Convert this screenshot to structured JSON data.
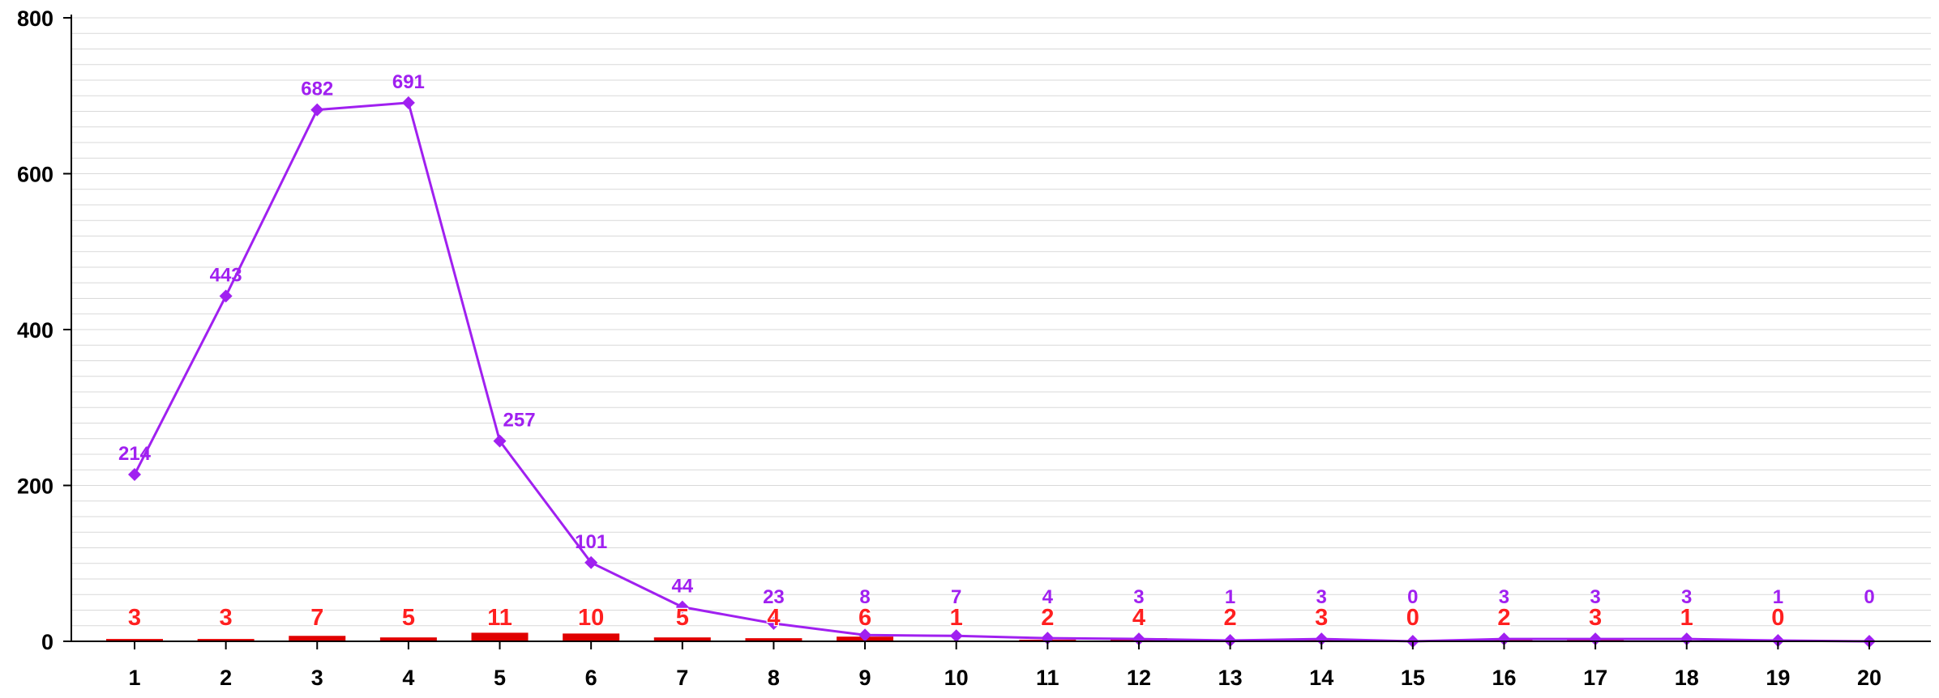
{
  "chart_data": {
    "type": "bar",
    "categories": [
      "1",
      "2",
      "3",
      "4",
      "5",
      "6",
      "7",
      "8",
      "9",
      "10",
      "11",
      "12",
      "13",
      "14",
      "15",
      "16",
      "17",
      "18",
      "19",
      "20"
    ],
    "series": [
      {
        "type": "bar",
        "values": [
          3,
          3,
          7,
          5,
          11,
          10,
          5,
          4,
          6,
          1,
          2,
          4,
          2,
          3,
          0,
          2,
          3,
          1,
          0,
          null
        ]
      },
      {
        "type": "line",
        "values": [
          214,
          443,
          682,
          691,
          257,
          101,
          44,
          23,
          8,
          7,
          4,
          3,
          1,
          3,
          0,
          3,
          3,
          3,
          1,
          0
        ]
      }
    ],
    "ylim": [
      0,
      800
    ],
    "yticks": [
      0,
      200,
      400,
      600,
      800
    ],
    "grid": true,
    "legend": "none",
    "colors": {
      "bar": "#e00000",
      "bar_label": "#ff2020",
      "line": "#a020f0",
      "grid": "#d9d9d9",
      "axis": "#000000"
    }
  }
}
